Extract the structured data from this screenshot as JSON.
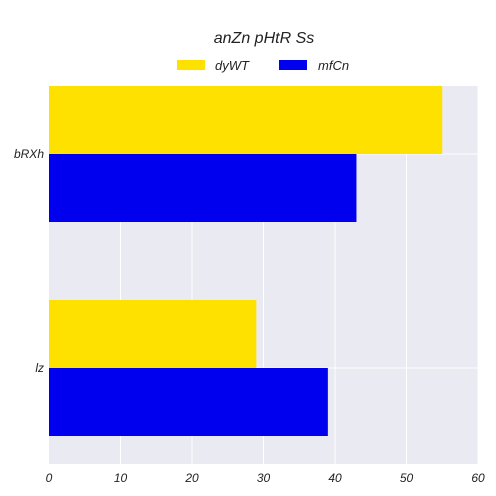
{
  "chart_data": {
    "type": "bar",
    "orientation": "horizontal",
    "title": "anZn pHtR  Ss",
    "xlabel": "",
    "ylabel": "",
    "categories": [
      "bRXh",
      "lz"
    ],
    "series": [
      {
        "name": "dyWT",
        "values": [
          55,
          29
        ],
        "color": "#FFE100"
      },
      {
        "name": "mfCn",
        "values": [
          43,
          39
        ],
        "color": "#0000EE"
      }
    ],
    "xlim": [
      0,
      60
    ],
    "xticks": [
      0,
      10,
      20,
      30,
      40,
      50,
      60
    ],
    "xtick_labels": [
      "0",
      "10",
      "20",
      "30",
      "40",
      "50",
      "60"
    ],
    "grid": true,
    "legend_position": "top-center",
    "plot_background": "#EAEAF2"
  }
}
